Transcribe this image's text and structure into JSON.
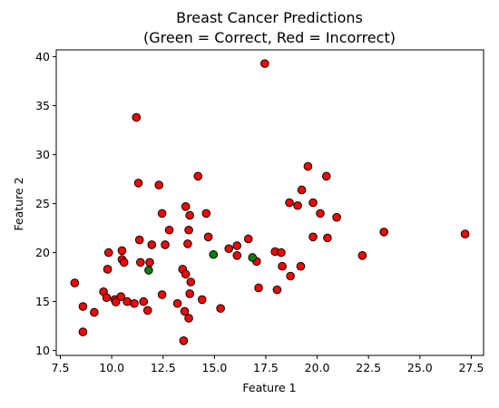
{
  "chart_data": {
    "type": "scatter",
    "title_line1": "Breast Cancer Predictions",
    "title_line2": "(Green = Correct, Red = Incorrect)",
    "xlabel": "Feature 1",
    "ylabel": "Feature 2",
    "xlim": [
      7.3,
      28.1
    ],
    "ylim": [
      9.5,
      40.7
    ],
    "xticks": [
      7.5,
      10.0,
      12.5,
      15.0,
      17.5,
      20.0,
      22.5,
      25.0,
      27.5
    ],
    "xtick_labels": [
      "7.5",
      "10.0",
      "12.5",
      "15.0",
      "17.5",
      "20.0",
      "22.5",
      "25.0",
      "27.5"
    ],
    "yticks": [
      10,
      15,
      20,
      25,
      30,
      35,
      40
    ],
    "ytick_labels": [
      "10",
      "15",
      "20",
      "25",
      "30",
      "35",
      "40"
    ],
    "grid": false,
    "colors": {
      "correct": "#008000",
      "incorrect": "#ff0000",
      "edge": "#000000"
    },
    "series": [
      {
        "status": "correct",
        "color": "#008000",
        "points": [
          [
            11.8,
            18.2
          ],
          [
            14.95,
            19.8
          ],
          [
            16.85,
            19.5
          ]
        ]
      },
      {
        "status": "incorrect",
        "color": "#ff0000",
        "points": [
          [
            8.2,
            16.9
          ],
          [
            8.6,
            14.5
          ],
          [
            8.6,
            11.9
          ],
          [
            9.15,
            13.9
          ],
          [
            9.6,
            16.0
          ],
          [
            9.75,
            15.4
          ],
          [
            9.8,
            18.3
          ],
          [
            9.85,
            20.0
          ],
          [
            10.15,
            15.2
          ],
          [
            10.2,
            14.95
          ],
          [
            10.45,
            15.5
          ],
          [
            10.5,
            19.3
          ],
          [
            10.5,
            20.2
          ],
          [
            10.6,
            19.0
          ],
          [
            10.75,
            15.0
          ],
          [
            11.1,
            14.8
          ],
          [
            11.2,
            33.8
          ],
          [
            11.3,
            27.1
          ],
          [
            11.35,
            21.3
          ],
          [
            11.4,
            19.0
          ],
          [
            11.55,
            15.0
          ],
          [
            11.75,
            14.1
          ],
          [
            11.85,
            19.0
          ],
          [
            11.95,
            20.8
          ],
          [
            12.3,
            26.9
          ],
          [
            12.45,
            24.0
          ],
          [
            12.45,
            15.7
          ],
          [
            12.6,
            20.8
          ],
          [
            12.8,
            22.3
          ],
          [
            13.2,
            14.8
          ],
          [
            13.45,
            18.3
          ],
          [
            13.5,
            11.0
          ],
          [
            13.55,
            14.0
          ],
          [
            13.6,
            17.8
          ],
          [
            13.6,
            24.7
          ],
          [
            13.7,
            20.9
          ],
          [
            13.75,
            22.3
          ],
          [
            13.75,
            13.3
          ],
          [
            13.8,
            23.8
          ],
          [
            13.8,
            15.8
          ],
          [
            13.85,
            17.0
          ],
          [
            14.2,
            27.8
          ],
          [
            14.4,
            15.2
          ],
          [
            14.6,
            24.0
          ],
          [
            14.7,
            21.6
          ],
          [
            15.3,
            14.3
          ],
          [
            15.7,
            20.4
          ],
          [
            16.1,
            19.7
          ],
          [
            16.1,
            20.7
          ],
          [
            16.65,
            21.4
          ],
          [
            17.05,
            19.1
          ],
          [
            17.15,
            16.4
          ],
          [
            17.45,
            39.3
          ],
          [
            17.95,
            20.1
          ],
          [
            18.05,
            16.2
          ],
          [
            18.25,
            20.0
          ],
          [
            18.3,
            18.6
          ],
          [
            18.65,
            25.1
          ],
          [
            18.7,
            17.6
          ],
          [
            19.05,
            24.8
          ],
          [
            19.2,
            18.6
          ],
          [
            19.25,
            26.4
          ],
          [
            19.55,
            28.8
          ],
          [
            19.8,
            21.6
          ],
          [
            19.8,
            25.1
          ],
          [
            20.15,
            24.0
          ],
          [
            20.45,
            27.8
          ],
          [
            20.5,
            21.5
          ],
          [
            20.95,
            23.6
          ],
          [
            22.2,
            19.7
          ],
          [
            23.25,
            22.1
          ],
          [
            27.2,
            21.9
          ]
        ]
      }
    ]
  }
}
